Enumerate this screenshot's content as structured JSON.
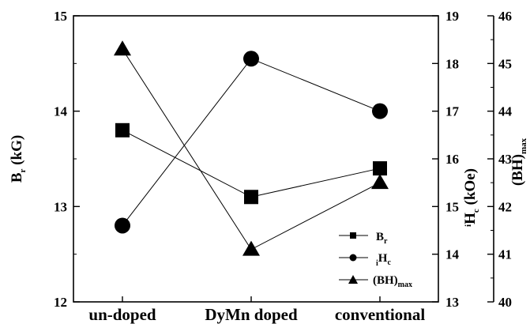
{
  "chart_data": {
    "type": "line",
    "categories": [
      "un-doped",
      "DyMn doped",
      "conventional"
    ],
    "axes": {
      "left": {
        "label_main": "B",
        "label_sub": "r",
        "label_tail": " (kG)",
        "ylim": [
          12,
          15
        ],
        "ticks": [
          12,
          13,
          14,
          15
        ]
      },
      "right1": {
        "label_pre": "i",
        "label_main": "H",
        "label_sub": "c",
        "label_tail": " (kOe)",
        "ylim": [
          13,
          19
        ],
        "ticks": [
          13,
          14,
          15,
          16,
          17,
          18,
          19
        ]
      },
      "right2": {
        "label_main": "(BH)",
        "label_sub": "max",
        "ylim": [
          40,
          46
        ],
        "ticks": [
          40,
          41,
          42,
          43,
          44,
          45,
          46
        ]
      }
    },
    "series": [
      {
        "legend_main": "B",
        "legend_sub": "r",
        "legend_pre": "",
        "axis": "left",
        "marker": "square",
        "values": [
          13.8,
          13.1,
          13.4
        ]
      },
      {
        "legend_main": "H",
        "legend_sub": "c",
        "legend_pre": "i",
        "axis": "right1",
        "marker": "circle",
        "values": [
          14.6,
          18.1,
          17.0
        ]
      },
      {
        "legend_main": "(BH)",
        "legend_sub": "max",
        "legend_pre": "",
        "axis": "right2",
        "marker": "triangle",
        "values": [
          45.3,
          41.1,
          42.5
        ]
      }
    ],
    "legend_position": "lower-right",
    "grid": false
  }
}
